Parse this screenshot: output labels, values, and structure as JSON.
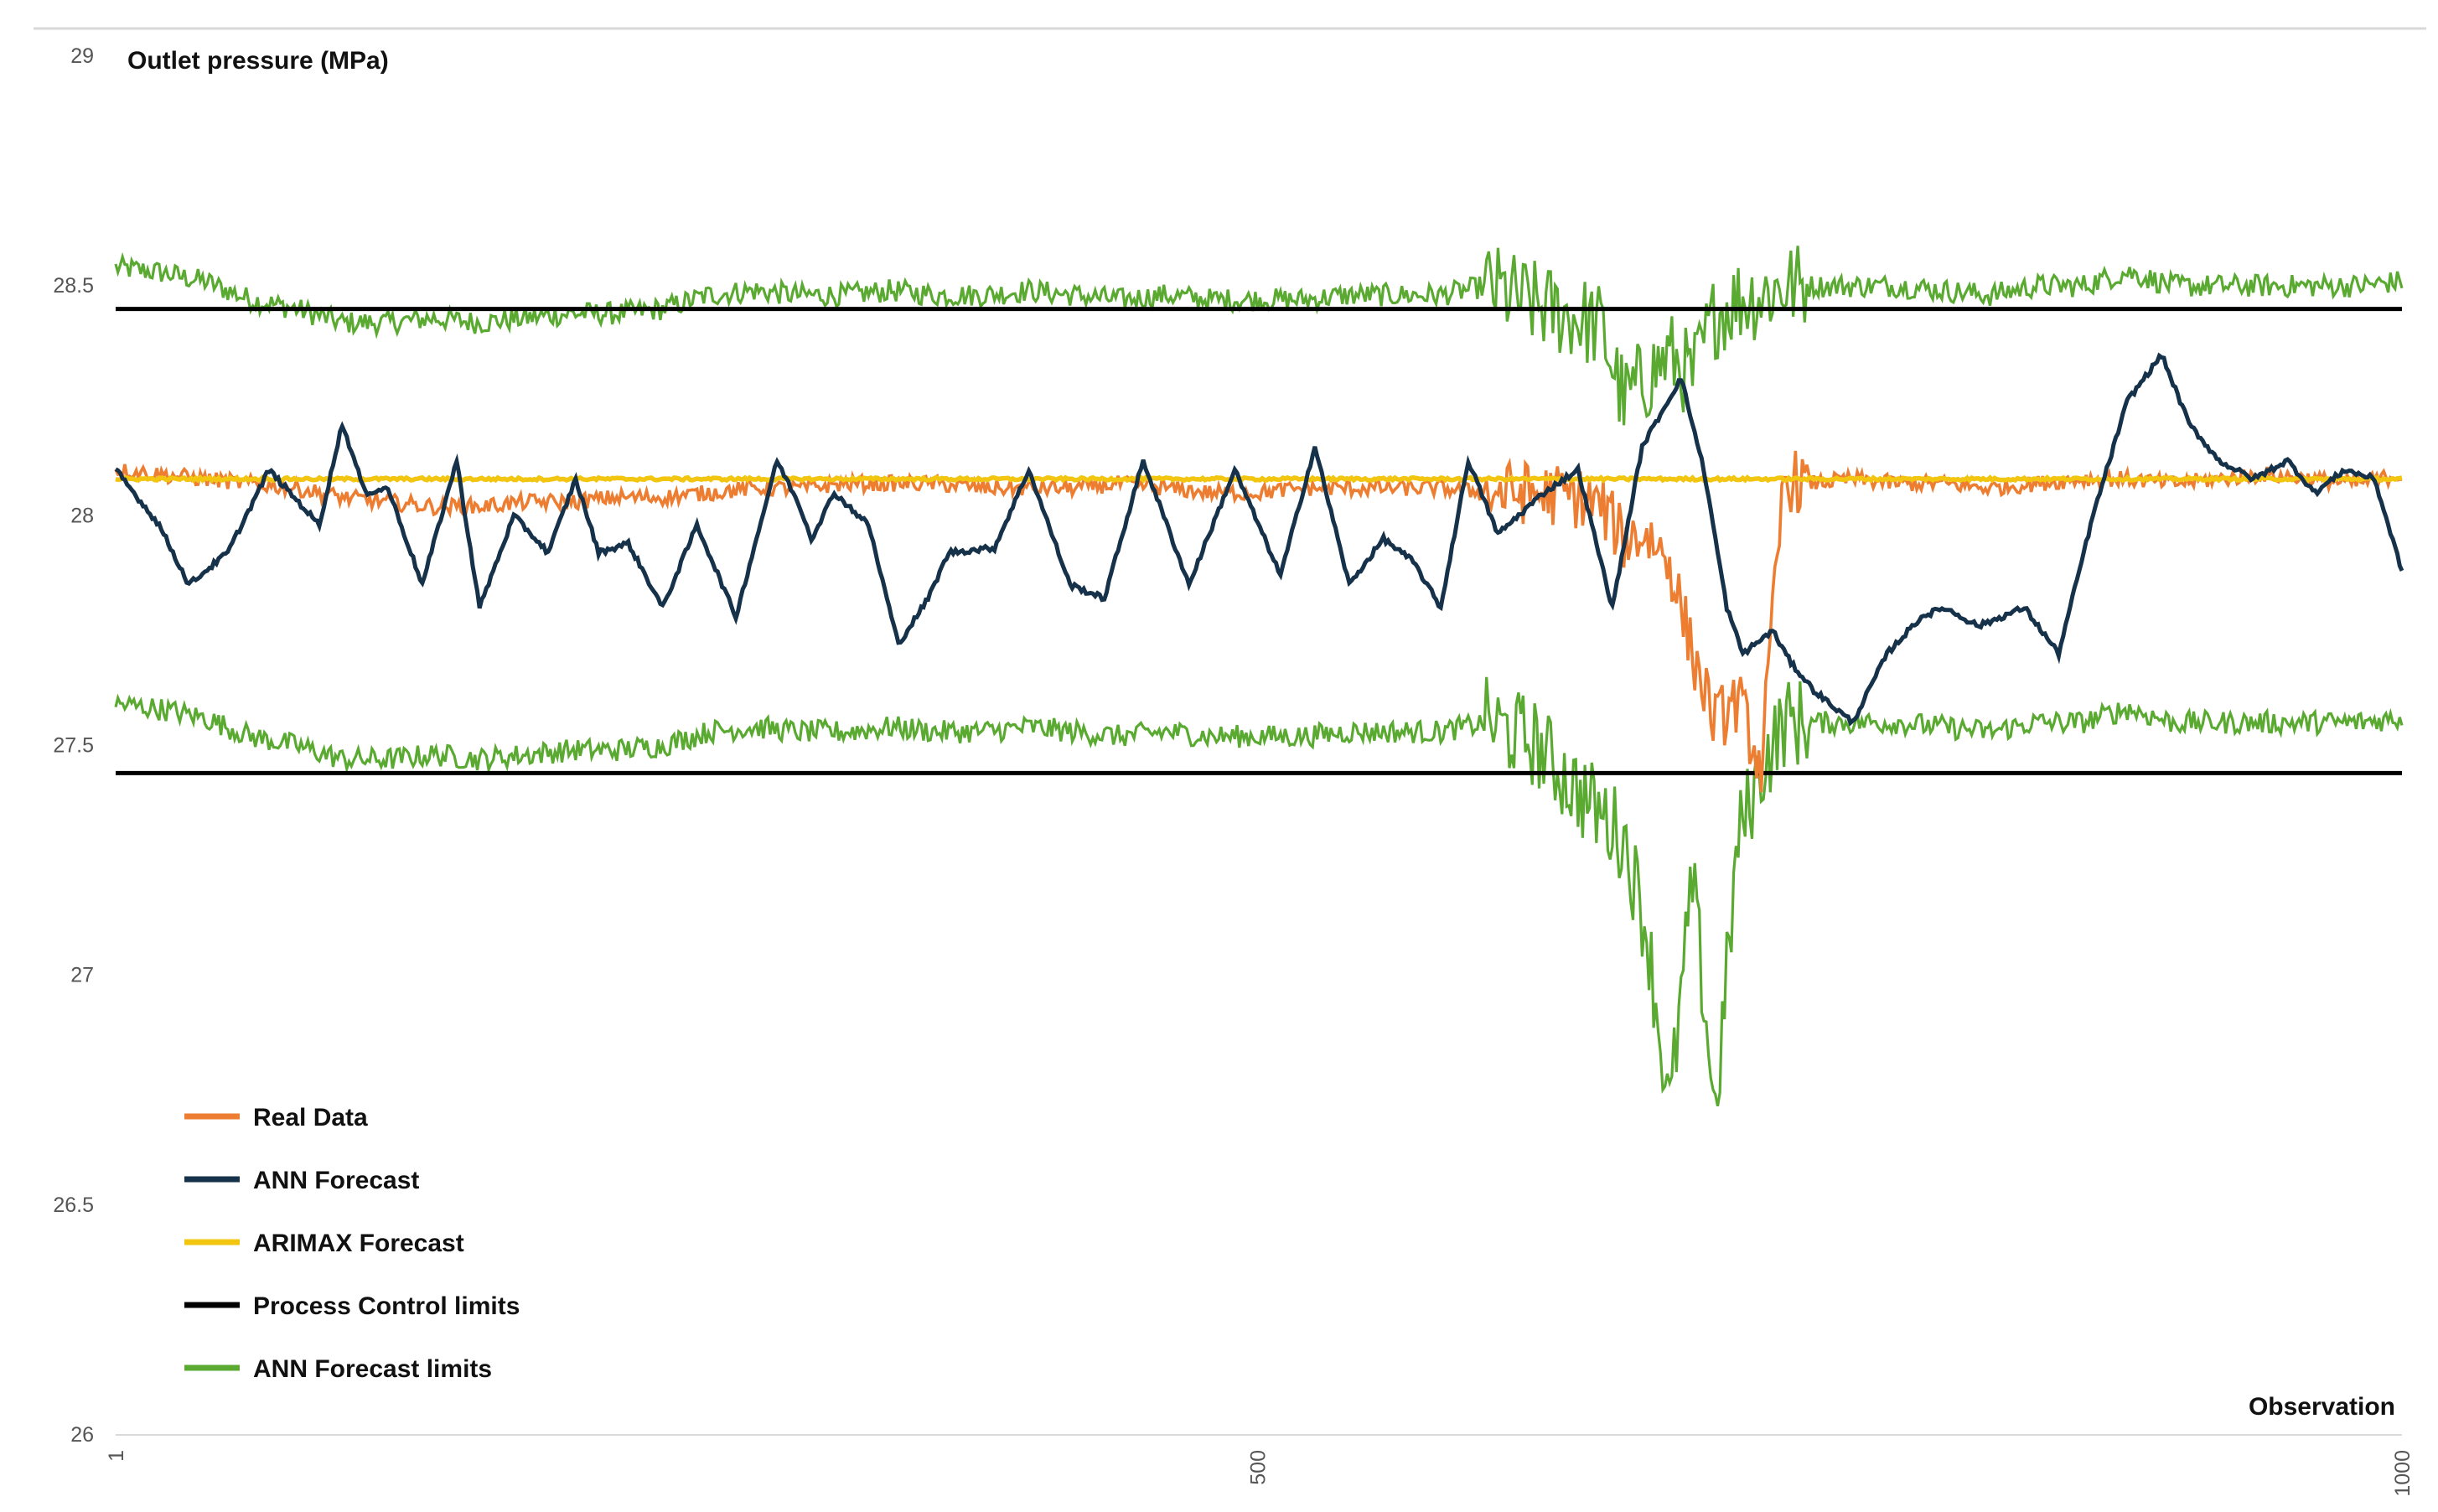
{
  "chart_data": {
    "type": "line",
    "title": "",
    "ylabel": "Outlet pressure (MPa)",
    "xlabel": "Observation",
    "ylim": [
      26,
      29
    ],
    "yticks": [
      "26",
      "26.5",
      "27",
      "27.5",
      "28",
      "28.5",
      "29"
    ],
    "xlim": [
      1,
      1000
    ],
    "xticks": [
      "1",
      "500",
      "1000"
    ],
    "grid": false,
    "legend_position": "bottom-left",
    "n_points": 1000,
    "series": [
      {
        "name": "Real Data",
        "color": "#ED7D31",
        "x": [
          1,
          20,
          40,
          60,
          80,
          100,
          120,
          140,
          160,
          180,
          200,
          220,
          240,
          260,
          280,
          300,
          320,
          340,
          360,
          380,
          400,
          420,
          440,
          460,
          480,
          500,
          520,
          540,
          560,
          580,
          600,
          620,
          640,
          650,
          660,
          670,
          680,
          690,
          700,
          710,
          720,
          730,
          740,
          760,
          780,
          800,
          820,
          840,
          860,
          880,
          900,
          920,
          940,
          960,
          980,
          1000
        ],
        "y": [
          28.1,
          28.09,
          28.08,
          28.07,
          28.06,
          28.04,
          28.03,
          28.02,
          28.02,
          28.03,
          28.03,
          28.04,
          28.04,
          28.05,
          28.06,
          28.06,
          28.07,
          28.07,
          28.07,
          28.06,
          28.06,
          28.06,
          28.07,
          28.06,
          28.05,
          28.05,
          28.06,
          28.06,
          28.06,
          28.06,
          28.05,
          28.05,
          28.04,
          28.02,
          27.95,
          27.96,
          27.9,
          27.7,
          27.55,
          27.6,
          27.45,
          28.08,
          28.07,
          28.08,
          28.07,
          28.07,
          28.06,
          28.07,
          28.08,
          28.08,
          28.07,
          28.08,
          28.09,
          28.08,
          28.07,
          28.09
        ]
      },
      {
        "name": "ANN Forecast",
        "color": "#16324A",
        "x": [
          1,
          20,
          33,
          50,
          68,
          90,
          100,
          110,
          120,
          135,
          150,
          160,
          175,
          190,
          202,
          212,
          225,
          240,
          255,
          272,
          290,
          300,
          305,
          315,
          330,
          343,
          356,
          365,
          385,
          400,
          418,
          433,
          450,
          470,
          490,
          510,
          525,
          540,
          555,
          568,
          580,
          592,
          605,
          625,
          640,
          655,
          668,
          685,
          695,
          705,
          712,
          725,
          733,
          743,
          760,
          775,
          790,
          800,
          815,
          835,
          850,
          865,
          880,
          895,
          907,
          920,
          935,
          950,
          962,
          975,
          988,
          1000
        ],
        "y": [
          28.1,
          27.98,
          27.85,
          27.92,
          28.1,
          27.98,
          28.2,
          28.05,
          28.06,
          27.85,
          28.12,
          27.8,
          28.0,
          27.92,
          28.08,
          27.92,
          27.94,
          27.8,
          27.98,
          27.78,
          28.12,
          28.02,
          27.95,
          28.05,
          27.98,
          27.72,
          27.82,
          27.92,
          27.93,
          28.1,
          27.85,
          27.82,
          28.12,
          27.85,
          28.1,
          27.87,
          28.15,
          27.85,
          27.95,
          27.9,
          27.8,
          28.12,
          27.96,
          28.05,
          28.1,
          27.8,
          28.15,
          28.3,
          28.1,
          27.8,
          27.7,
          27.75,
          27.68,
          27.62,
          27.55,
          27.7,
          27.78,
          27.8,
          27.76,
          27.8,
          27.7,
          28.0,
          28.25,
          28.35,
          28.2,
          28.12,
          28.08,
          28.12,
          28.05,
          28.1,
          28.08,
          27.88
        ]
      },
      {
        "name": "ARIMAX Forecast",
        "color": "#F2C511",
        "x": [
          1,
          1000
        ],
        "y": [
          28.08,
          28.08
        ]
      },
      {
        "name": "Process Control limits",
        "color": "#000000",
        "x": [
          1,
          1000
        ],
        "y": [
          28.45,
          28.45
        ],
        "x2": [
          1,
          1000
        ],
        "y2": [
          27.44,
          27.44
        ]
      },
      {
        "name": "ANN Forecast limits",
        "color": "#5AAA32",
        "x": [
          1,
          20,
          40,
          60,
          80,
          100,
          120,
          140,
          160,
          180,
          200,
          220,
          240,
          260,
          280,
          300,
          320,
          340,
          360,
          380,
          400,
          420,
          440,
          460,
          480,
          500,
          520,
          540,
          560,
          580,
          600,
          620,
          640,
          650,
          660,
          670,
          680,
          690,
          700,
          710,
          720,
          730,
          740,
          760,
          780,
          800,
          820,
          840,
          860,
          880,
          900,
          920,
          940,
          960,
          980,
          1000
        ],
        "y": [
          28.54,
          28.53,
          28.51,
          28.47,
          28.45,
          28.42,
          28.42,
          28.43,
          28.42,
          28.43,
          28.44,
          28.44,
          28.45,
          28.48,
          28.49,
          28.48,
          28.48,
          28.49,
          28.48,
          28.48,
          28.49,
          28.48,
          28.47,
          28.48,
          28.47,
          28.47,
          28.47,
          28.48,
          28.48,
          28.48,
          28.5,
          28.46,
          28.43,
          28.41,
          28.25,
          28.3,
          28.35,
          28.3,
          28.44,
          28.47,
          28.48,
          28.5,
          28.5,
          28.5,
          28.5,
          28.49,
          28.48,
          28.5,
          28.5,
          28.53,
          28.5,
          28.5,
          28.5,
          28.5,
          28.5,
          28.51
        ],
        "y_lower": [
          27.59,
          27.58,
          27.56,
          27.52,
          27.5,
          27.47,
          27.47,
          27.48,
          27.47,
          27.48,
          27.49,
          27.49,
          27.5,
          27.53,
          27.54,
          27.53,
          27.53,
          27.54,
          27.53,
          27.53,
          27.54,
          27.53,
          27.52,
          27.53,
          27.52,
          27.52,
          27.52,
          27.53,
          27.53,
          27.53,
          27.55,
          27.51,
          27.4,
          27.35,
          27.3,
          27.1,
          26.7,
          27.2,
          26.7,
          27.3,
          27.45,
          27.55,
          27.55,
          27.55,
          27.55,
          27.54,
          27.53,
          27.55,
          27.55,
          27.58,
          27.55,
          27.55,
          27.55,
          27.55,
          27.55,
          27.56
        ]
      }
    ],
    "legend": [
      {
        "label": "Real Data",
        "color": "#ED7D31"
      },
      {
        "label": "ANN Forecast",
        "color": "#16324A"
      },
      {
        "label": "ARIMAX Forecast",
        "color": "#F2C511"
      },
      {
        "label": "Process Control limits",
        "color": "#000000"
      },
      {
        "label": "ANN Forecast limits",
        "color": "#5AAA32"
      }
    ]
  }
}
